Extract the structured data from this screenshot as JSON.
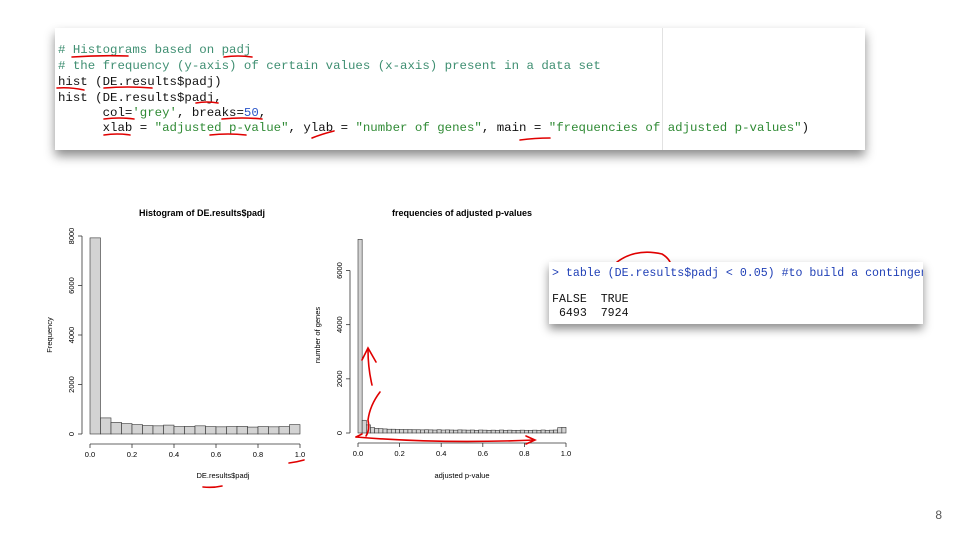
{
  "code": {
    "line1": "# Histograms based on padj",
    "line2": "# the frequency (y-axis) of certain values (x-axis) present in a data set",
    "line3": "hist (DE.results$padj)",
    "line4": "hist (DE.results$padj,",
    "line5_a": "      col=",
    "line5_b": "'grey'",
    "line5_c": ", breaks=",
    "line5_d": "50",
    "line5_e": ",",
    "line6_a": "      xlab = ",
    "line6_b": "\"adjusted p-value\"",
    "line6_c": ", ylab = ",
    "line6_d": "\"number of genes\"",
    "line6_e": ", main = ",
    "line6_f": "\"frequencies of adjusted p-values\"",
    "line6_g": ")"
  },
  "console": {
    "command": "> table (DE.results$padj < 0.05) #to build a contingen",
    "header": "FALSE  TRUE",
    "counts": " 6493  7924"
  },
  "annotation_color": "#e00000",
  "page_number": "8",
  "chart_data": [
    {
      "type": "bar",
      "title": "Histogram of DE.results$padj",
      "xlabel": "DE.results$padj",
      "ylabel": "Frequency",
      "bins": 20,
      "xlim": [
        0,
        1
      ],
      "ylim": [
        0,
        8000
      ],
      "x_ticks": [
        "0.0",
        "0.2",
        "0.4",
        "0.6",
        "0.8",
        "1.0"
      ],
      "y_ticks": [
        "0",
        "2000",
        "4000",
        "6000",
        "8000"
      ],
      "values": [
        7924,
        650,
        470,
        420,
        380,
        340,
        330,
        360,
        300,
        310,
        330,
        300,
        290,
        300,
        310,
        280,
        300,
        290,
        300,
        380
      ],
      "bar_color": "#d3d3d3"
    },
    {
      "type": "bar",
      "title": "frequencies of adjusted p-values",
      "xlabel": "adjusted p-value",
      "ylabel": "number of genes",
      "bins": 50,
      "xlim": [
        0,
        1
      ],
      "ylim": [
        0,
        7200
      ],
      "x_ticks": [
        "0.0",
        "0.2",
        "0.4",
        "0.6",
        "0.8",
        "1.0"
      ],
      "y_ticks": [
        "0",
        "2000",
        "4000",
        "6000"
      ],
      "values": [
        7150,
        470,
        300,
        200,
        170,
        160,
        150,
        140,
        140,
        130,
        130,
        125,
        125,
        120,
        120,
        115,
        120,
        115,
        110,
        120,
        110,
        115,
        110,
        105,
        115,
        110,
        105,
        110,
        100,
        110,
        105,
        100,
        105,
        100,
        110,
        100,
        105,
        100,
        100,
        105,
        100,
        100,
        105,
        100,
        110,
        100,
        105,
        110,
        200,
        210
      ],
      "bar_color": "#d3d3d3"
    }
  ]
}
